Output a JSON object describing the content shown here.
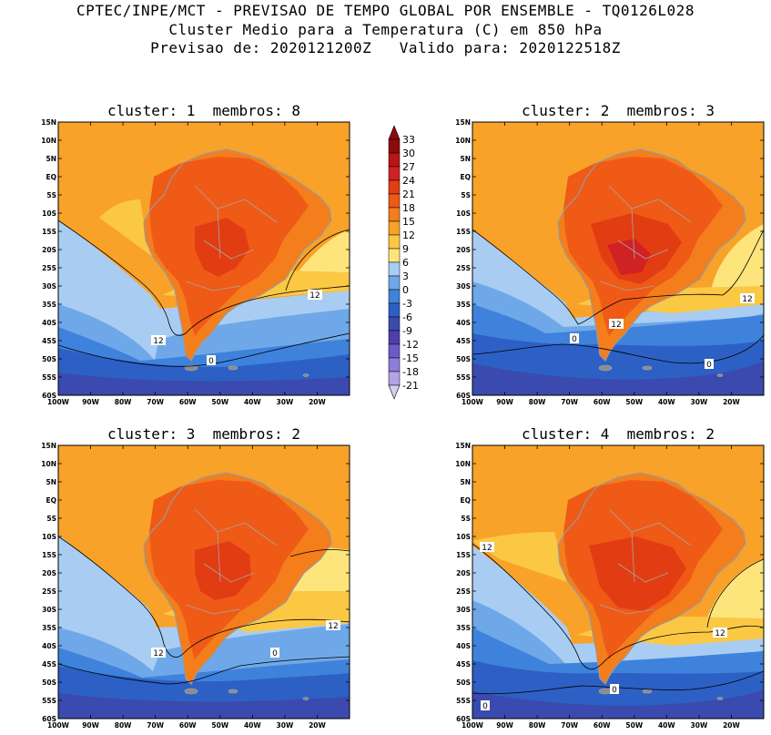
{
  "header": {
    "line1": "CPTEC/INPE/MCT - PREVISAO DE TEMPO GLOBAL POR ENSEMBLE - TQ0126L028",
    "line2": "Cluster Medio para a Temperatura (C) em 850 hPa",
    "line3": "Previsao de: 2020121200Z   Valido para: 2020122518Z"
  },
  "panels": [
    {
      "title": "cluster: 1  membros: 8"
    },
    {
      "title": "cluster: 2  membros: 3"
    },
    {
      "title": "cluster: 3  membros: 2"
    },
    {
      "title": "cluster: 4  membros: 2"
    }
  ],
  "map_axes": {
    "lat_labels": [
      "15N",
      "10N",
      "5N",
      "EQ",
      "5S",
      "10S",
      "15S",
      "20S",
      "25S",
      "30S",
      "35S",
      "40S",
      "45S",
      "50S",
      "55S",
      "60S"
    ],
    "lon_labels": [
      "100W",
      "90W",
      "80W",
      "70W",
      "60W",
      "50W",
      "40W",
      "30W",
      "20W"
    ]
  },
  "contour_labels": [
    "12",
    "0"
  ],
  "colorbar": {
    "labels": [
      "33",
      "30",
      "27",
      "24",
      "21",
      "18",
      "15",
      "12",
      "9",
      "6",
      "3",
      "0",
      "-3",
      "-6",
      "-9",
      "-12",
      "-15",
      "-18",
      "-21"
    ],
    "colors": [
      "#8e0b0b",
      "#b81616",
      "#d02222",
      "#e23d12",
      "#ef5a16",
      "#f47d1c",
      "#f8a22a",
      "#fbc844",
      "#fde57b",
      "#a9cdf2",
      "#6fa8e8",
      "#3f82dc",
      "#2d60c4",
      "#3b4aae",
      "#4d3fb0",
      "#6d5ac8",
      "#8e7cd8",
      "#b2a4e4",
      "#d6cdf0"
    ]
  }
}
